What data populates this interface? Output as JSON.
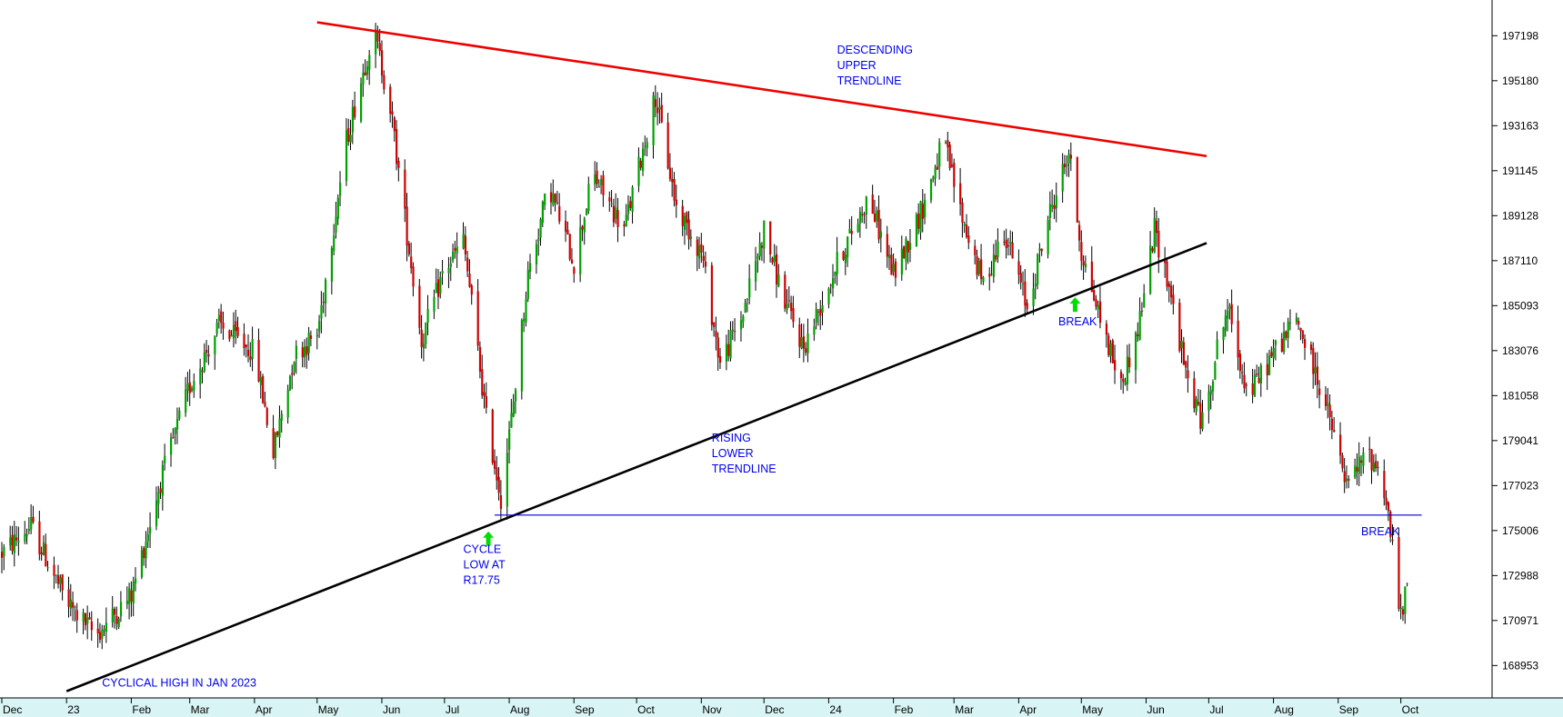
{
  "chart_data": {
    "type": "candlestick",
    "title": "",
    "xlabel": "",
    "ylabel": "",
    "ylim": [
      167500,
      198800
    ],
    "y_ticks": [
      "197198",
      "195180",
      "193163",
      "191145",
      "189128",
      "187110",
      "185093",
      "183076",
      "181058",
      "179041",
      "177023",
      "175006",
      "172988",
      "170971",
      "168953"
    ],
    "x_ticks": [
      "Dec",
      "23",
      "Feb",
      "Mar",
      "Apr",
      "May",
      "Jun",
      "Jul",
      "Aug",
      "Sep",
      "Oct",
      "Nov",
      "Dec",
      "24",
      "Feb",
      "Mar",
      "Apr",
      "May",
      "Jun",
      "Jul",
      "Aug",
      "Sep",
      "Oct"
    ],
    "candle_colors": {
      "up": "#00a000",
      "down": "#cc0000",
      "wick": "#000000"
    },
    "price_path": [
      {
        "x": "2022-12-01",
        "y": 174000
      },
      {
        "x": "2022-12-15",
        "y": 175200
      },
      {
        "x": "2023-01-01",
        "y": 171800
      },
      {
        "x": "2023-01-15",
        "y": 170300
      },
      {
        "x": "2023-02-01",
        "y": 172100
      },
      {
        "x": "2023-02-15",
        "y": 177200
      },
      {
        "x": "2023-03-01",
        "y": 181500
      },
      {
        "x": "2023-03-15",
        "y": 184200
      },
      {
        "x": "2023-04-01",
        "y": 183000
      },
      {
        "x": "2023-04-10",
        "y": 178500
      },
      {
        "x": "2023-04-20",
        "y": 182900
      },
      {
        "x": "2023-05-01",
        "y": 183800
      },
      {
        "x": "2023-05-15",
        "y": 192500
      },
      {
        "x": "2023-05-28",
        "y": 197500
      },
      {
        "x": "2023-06-05",
        "y": 194000
      },
      {
        "x": "2023-06-12",
        "y": 189000
      },
      {
        "x": "2023-06-20",
        "y": 183500
      },
      {
        "x": "2023-06-30",
        "y": 186500
      },
      {
        "x": "2023-07-10",
        "y": 188000
      },
      {
        "x": "2023-07-15",
        "y": 184500
      },
      {
        "x": "2023-07-21",
        "y": 180000
      },
      {
        "x": "2023-07-28",
        "y": 176500
      },
      {
        "x": "2023-08-02",
        "y": 180000
      },
      {
        "x": "2023-08-10",
        "y": 186500
      },
      {
        "x": "2023-08-20",
        "y": 190500
      },
      {
        "x": "2023-09-01",
        "y": 187000
      },
      {
        "x": "2023-09-10",
        "y": 191000
      },
      {
        "x": "2023-09-25",
        "y": 188500
      },
      {
        "x": "2023-10-05",
        "y": 192500
      },
      {
        "x": "2023-10-10",
        "y": 194500
      },
      {
        "x": "2023-10-20",
        "y": 189500
      },
      {
        "x": "2023-11-01",
        "y": 187500
      },
      {
        "x": "2023-11-10",
        "y": 182500
      },
      {
        "x": "2023-11-20",
        "y": 184500
      },
      {
        "x": "2023-12-01",
        "y": 188500
      },
      {
        "x": "2023-12-10",
        "y": 185500
      },
      {
        "x": "2023-12-20",
        "y": 183200
      },
      {
        "x": "2024-01-05",
        "y": 187000
      },
      {
        "x": "2024-01-20",
        "y": 190000
      },
      {
        "x": "2024-02-01",
        "y": 186500
      },
      {
        "x": "2024-02-15",
        "y": 189500
      },
      {
        "x": "2024-02-25",
        "y": 192500
      },
      {
        "x": "2024-03-05",
        "y": 189000
      },
      {
        "x": "2024-03-15",
        "y": 186000
      },
      {
        "x": "2024-03-25",
        "y": 188500
      },
      {
        "x": "2024-04-05",
        "y": 185000
      },
      {
        "x": "2024-04-15",
        "y": 189000
      },
      {
        "x": "2024-04-25",
        "y": 192000
      },
      {
        "x": "2024-05-01",
        "y": 187500
      },
      {
        "x": "2024-05-10",
        "y": 184500
      },
      {
        "x": "2024-05-20",
        "y": 181500
      },
      {
        "x": "2024-05-28",
        "y": 184000
      },
      {
        "x": "2024-06-05",
        "y": 188500
      },
      {
        "x": "2024-06-12",
        "y": 186000
      },
      {
        "x": "2024-06-20",
        "y": 182000
      },
      {
        "x": "2024-06-28",
        "y": 179800
      },
      {
        "x": "2024-07-05",
        "y": 183200
      },
      {
        "x": "2024-07-10",
        "y": 185000
      },
      {
        "x": "2024-07-20",
        "y": 181000
      },
      {
        "x": "2024-08-01",
        "y": 183000
      },
      {
        "x": "2024-08-12",
        "y": 184500
      },
      {
        "x": "2024-08-25",
        "y": 181000
      },
      {
        "x": "2024-09-05",
        "y": 177000
      },
      {
        "x": "2024-09-15",
        "y": 178500
      },
      {
        "x": "2024-09-22",
        "y": 177500
      },
      {
        "x": "2024-09-26",
        "y": 175000
      },
      {
        "x": "2024-10-01",
        "y": 171000
      },
      {
        "x": "2024-10-05",
        "y": 173000
      }
    ],
    "lines": [
      {
        "name": "descending-upper-trendline",
        "color": "#ee0000",
        "points": [
          {
            "x": "2023-05-01",
            "y": 197800
          },
          {
            "x": "2024-06-30",
            "y": 191800
          }
        ]
      },
      {
        "name": "rising-lower-trendline",
        "color": "#000000",
        "points": [
          {
            "x": "2023-01-01",
            "y": 167800
          },
          {
            "x": "2024-06-30",
            "y": 187900
          }
        ]
      },
      {
        "name": "support-line",
        "color": "#0000cc",
        "points": [
          {
            "x": "2023-07-25",
            "y": 175700
          },
          {
            "x": "2024-10-11",
            "y": 175700
          }
        ]
      }
    ],
    "arrows": [
      {
        "name": "cycle-low-arrow",
        "color": "#00dd00",
        "x": "2023-07-22",
        "y": 174600
      },
      {
        "name": "break-arrow-1",
        "color": "#00dd00",
        "x": "2024-04-28",
        "y": 185100
      }
    ],
    "annotations": [
      {
        "name": "descending-upper-trendline-label",
        "lines": [
          "DESCENDING",
          "UPPER",
          "TRENDLINE"
        ],
        "x": "2024-01-05",
        "y": 196400
      },
      {
        "name": "rising-lower-trendline-label",
        "lines": [
          "RISING",
          "LOWER",
          "TRENDLINE"
        ],
        "x": "2023-11-06",
        "y": 179000
      },
      {
        "name": "cycle-low-label",
        "lines": [
          "CYCLE",
          "LOW AT",
          "R17.75"
        ],
        "x": "2023-07-10",
        "y": 174000
      },
      {
        "name": "break-label-1",
        "lines": [
          "BREAK"
        ],
        "x": "2024-04-20",
        "y": 184200
      },
      {
        "name": "break-label-2",
        "lines": [
          "BREAK"
        ],
        "x": "2024-09-12",
        "y": 174800
      },
      {
        "name": "cyclical-high-label",
        "lines": [
          "CYCLICAL HIGH IN JAN 2023"
        ],
        "x": "2023-01-18",
        "y": 168000
      }
    ]
  }
}
